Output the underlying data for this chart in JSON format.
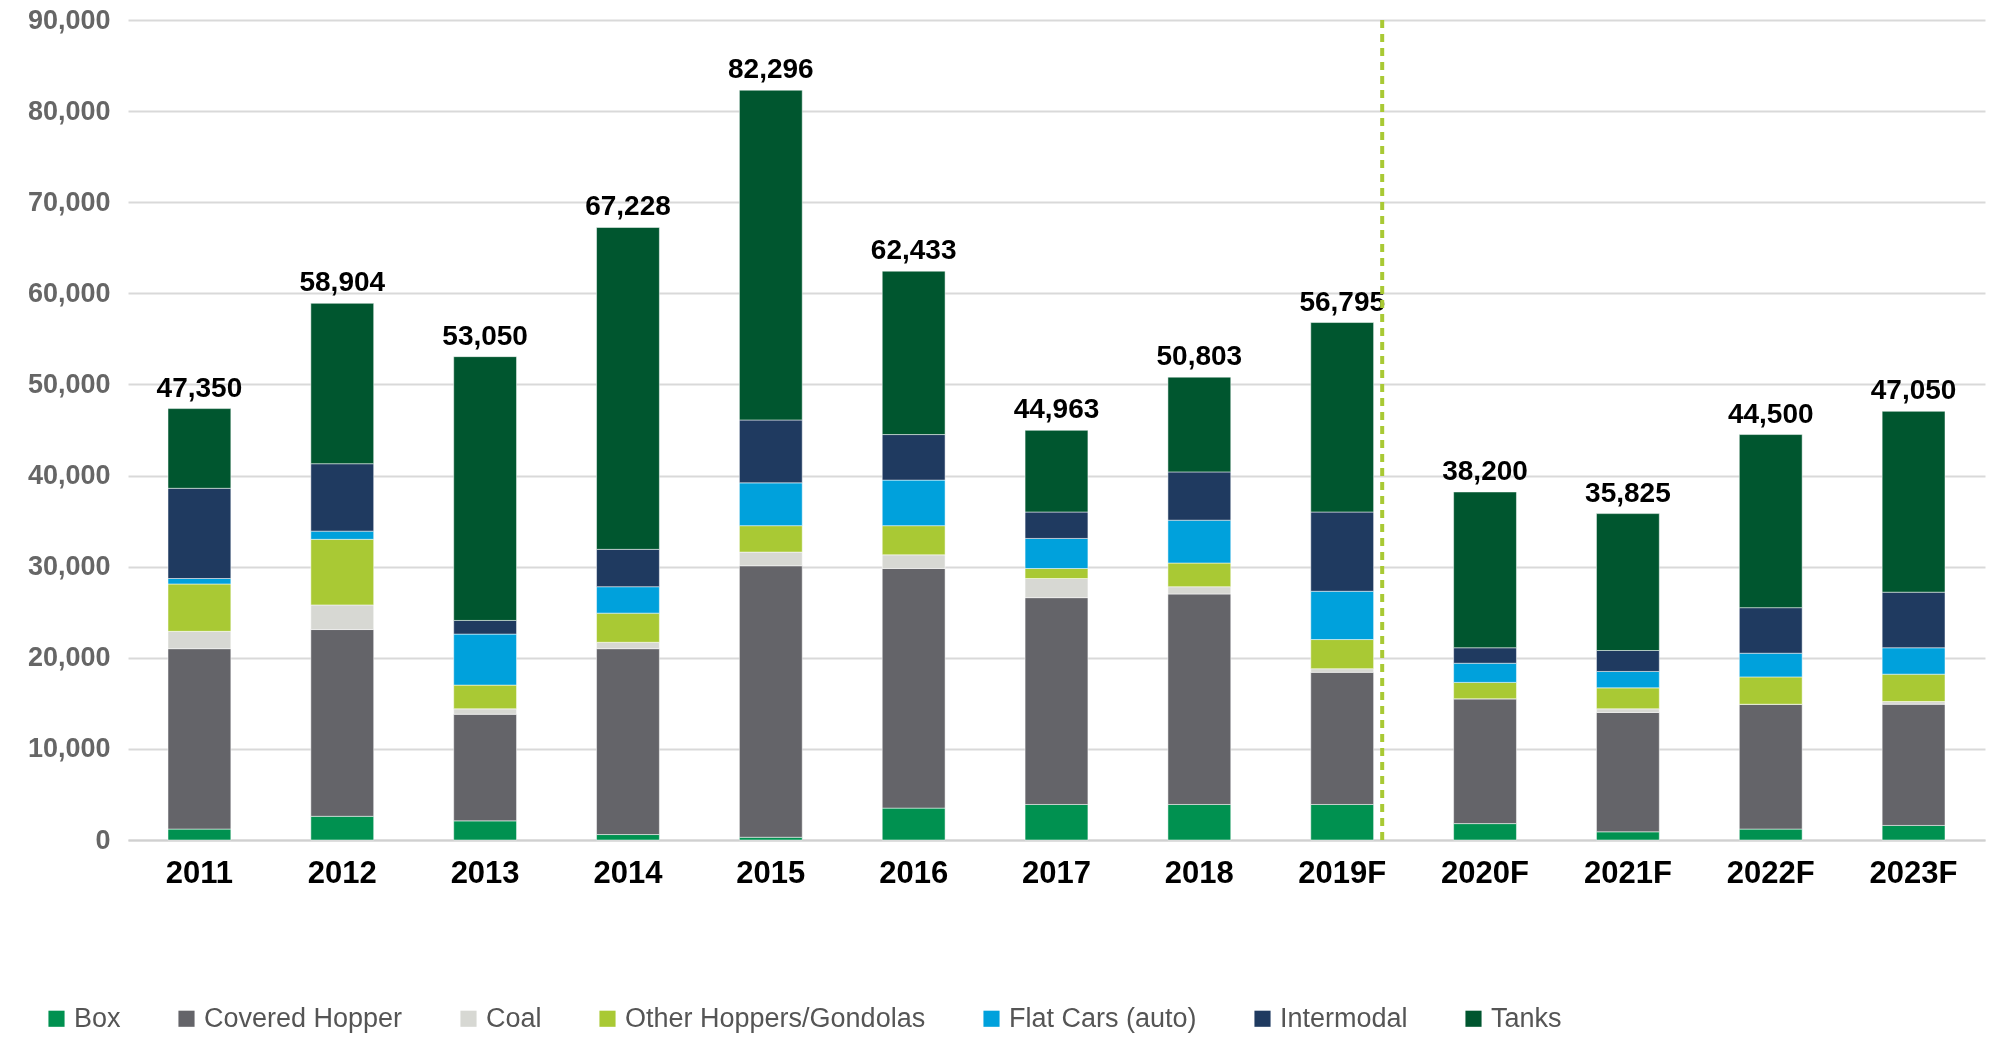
{
  "chart_data": {
    "type": "bar",
    "stacked": true,
    "categories": [
      "2011",
      "2012",
      "2013",
      "2014",
      "2015",
      "2016",
      "2017",
      "2018",
      "2019F",
      "2020F",
      "2021F",
      "2022F",
      "2023F"
    ],
    "series": [
      {
        "name": "Box",
        "color": "#009150",
        "values": [
          1200,
          2600,
          2100,
          600,
          300,
          3500,
          3900,
          3900,
          3900,
          1800,
          900,
          1200,
          1600
        ]
      },
      {
        "name": "Covered Hopper",
        "color": "#646469",
        "values": [
          19800,
          20500,
          11700,
          20400,
          29800,
          26300,
          22700,
          23100,
          14500,
          13700,
          13100,
          13700,
          13300
        ]
      },
      {
        "name": "Coal",
        "color": "#d7d8d3",
        "values": [
          1900,
          2700,
          600,
          700,
          1500,
          1500,
          2100,
          800,
          400,
          0,
          400,
          0,
          300
        ]
      },
      {
        "name": "Other Hoppers/Gondolas",
        "color": "#a9c934",
        "values": [
          5200,
          7200,
          2600,
          3200,
          2900,
          3200,
          1100,
          2600,
          3200,
          1800,
          2300,
          3000,
          3000
        ]
      },
      {
        "name": "Flat Cars (auto)",
        "color": "#00a1dc",
        "values": [
          600,
          900,
          5600,
          2900,
          4700,
          5000,
          3300,
          4700,
          5300,
          2100,
          1800,
          2600,
          2900
        ]
      },
      {
        "name": "Intermodal",
        "color": "#1f3a60",
        "values": [
          9900,
          7400,
          1500,
          4100,
          6900,
          5000,
          2900,
          5300,
          8700,
          1700,
          2300,
          5000,
          6100
        ]
      },
      {
        "name": "Tanks",
        "color": "#00562f",
        "values": [
          8750,
          17604,
          28950,
          35328,
          36196,
          17933,
          8963,
          10403,
          20795,
          17100,
          15025,
          19000,
          19850
        ]
      }
    ],
    "totals": [
      "47,350",
      "58,904",
      "53,050",
      "67,228",
      "82,296",
      "62,433",
      "44,963",
      "50,803",
      "56,795",
      "38,200",
      "35,825",
      "44,500",
      "47,050"
    ],
    "ylim": [
      0,
      90000
    ],
    "yticks": [
      0,
      {
        "value": 10000,
        "label": "10,000"
      },
      {
        "value": 20000,
        "label": "20,000"
      },
      {
        "value": 30000,
        "label": "30,000"
      },
      {
        "value": 40000,
        "label": "40,000"
      },
      {
        "value": 50000,
        "label": "50,000"
      },
      {
        "value": 60000,
        "label": "60,000"
      },
      {
        "value": 70000,
        "label": "70,000"
      },
      {
        "value": 80000,
        "label": "80,000"
      },
      {
        "value": 90000,
        "label": "90,000"
      }
    ],
    "grid": "y",
    "legend": "bottom",
    "ref_lines": [
      {
        "axis": "x",
        "value": "2019F",
        "color": "#a9c934",
        "line_style": "dashed"
      }
    ]
  }
}
